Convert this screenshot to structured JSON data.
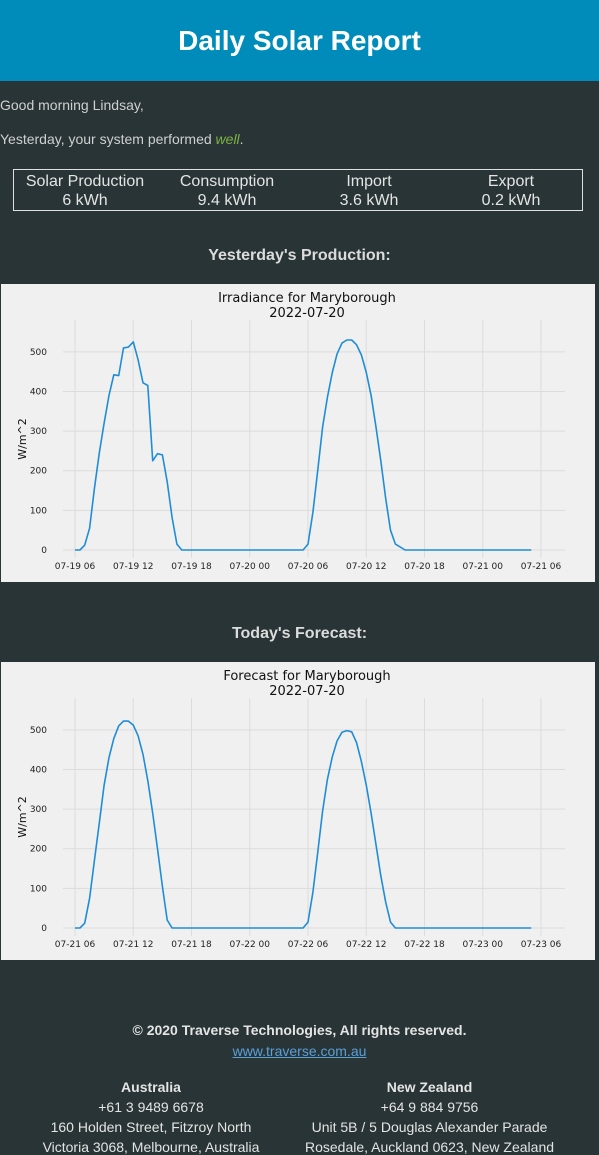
{
  "header": {
    "title": "Daily Solar Report"
  },
  "greeting": "Good morning Lindsay,",
  "performance": {
    "prefix": "Yesterday, your system performed ",
    "rating": "well",
    "suffix": "."
  },
  "stats": [
    {
      "label": "Solar Production",
      "value": "6 kWh"
    },
    {
      "label": "Consumption",
      "value": "9.4 kWh"
    },
    {
      "label": "Import",
      "value": "3.6 kWh"
    },
    {
      "label": "Export",
      "value": "0.2 kWh"
    }
  ],
  "production_section": {
    "title": "Yesterday's Production:"
  },
  "forecast_section": {
    "title": "Today's Forecast:"
  },
  "chart_data": [
    {
      "type": "line",
      "title": "Irradiance for Maryborough",
      "subtitle": "2022-07-20",
      "xlabel": "",
      "ylabel": "W/m^2",
      "ylim": [
        0,
        550
      ],
      "xlim": [
        0,
        48
      ],
      "grid": true,
      "x_tick_values": [
        0,
        6,
        12,
        18,
        24,
        30,
        36,
        42,
        48
      ],
      "x_tick_labels": [
        "07-19 06",
        "07-19 12",
        "07-19 18",
        "07-20 00",
        "07-20 06",
        "07-20 12",
        "07-20 18",
        "07-21 00",
        "07-21 06"
      ],
      "y_ticks": [
        0,
        100,
        200,
        300,
        400,
        500
      ],
      "series": [
        {
          "name": "Irradiance",
          "color": "#1f8dd6",
          "x": [
            0,
            0.5,
            1,
            1.5,
            2,
            2.5,
            3,
            3.5,
            4,
            4.5,
            5,
            5.5,
            6,
            6.5,
            7,
            7.5,
            8,
            8.5,
            9,
            9.5,
            10,
            10.5,
            11,
            11.5,
            12,
            13,
            14,
            15,
            16,
            17,
            18,
            19,
            20,
            21,
            22,
            23,
            23.5,
            24,
            24.5,
            25,
            25.5,
            26,
            26.5,
            27,
            27.5,
            28,
            28.5,
            29,
            29.5,
            30,
            30.5,
            31,
            31.5,
            32,
            32.5,
            33,
            34,
            35,
            36,
            37,
            38,
            39,
            40,
            41,
            42,
            43,
            47
          ],
          "values": [
            0,
            0,
            12,
            55,
            155,
            245,
            320,
            390,
            442,
            440,
            510,
            512,
            525,
            480,
            422,
            415,
            225,
            243,
            240,
            172,
            82,
            15,
            0,
            0,
            0,
            0,
            0,
            0,
            0,
            0,
            0,
            0,
            0,
            0,
            0,
            0,
            0,
            15,
            95,
            200,
            310,
            385,
            448,
            495,
            522,
            530,
            530,
            518,
            492,
            448,
            390,
            310,
            225,
            130,
            50,
            15,
            0,
            0,
            0,
            0,
            0,
            0,
            0,
            0,
            0,
            0,
            0
          ]
        }
      ]
    },
    {
      "type": "line",
      "title": "Forecast for Maryborough",
      "subtitle": "2022-07-20",
      "xlabel": "",
      "ylabel": "W/m^2",
      "ylim": [
        0,
        550
      ],
      "xlim": [
        0,
        48
      ],
      "grid": true,
      "x_tick_values": [
        0,
        6,
        12,
        18,
        24,
        30,
        36,
        42,
        48
      ],
      "x_tick_labels": [
        "07-21 06",
        "07-21 12",
        "07-21 18",
        "07-22 00",
        "07-22 06",
        "07-22 12",
        "07-22 18",
        "07-23 00",
        "07-23 06"
      ],
      "y_ticks": [
        0,
        100,
        200,
        300,
        400,
        500
      ],
      "series": [
        {
          "name": "Forecast",
          "color": "#1f8dd6",
          "x": [
            0,
            0.5,
            1,
            1.5,
            2,
            2.5,
            3,
            3.5,
            4,
            4.5,
            5,
            5.5,
            6,
            6.5,
            7,
            7.5,
            8,
            8.5,
            9,
            9.5,
            10,
            10.5,
            11,
            11.5,
            12,
            13,
            14,
            15,
            16,
            17,
            18,
            19,
            20,
            21,
            22,
            23,
            23.5,
            24,
            24.5,
            25,
            25.5,
            26,
            26.5,
            27,
            27.5,
            28,
            28.5,
            29,
            29.5,
            30,
            30.5,
            31,
            31.5,
            32,
            32.5,
            33,
            34,
            35,
            36,
            37,
            38,
            39,
            40,
            41,
            42,
            43,
            47
          ],
          "values": [
            0,
            0,
            12,
            75,
            170,
            265,
            360,
            430,
            478,
            510,
            522,
            522,
            512,
            485,
            438,
            372,
            290,
            200,
            105,
            20,
            0,
            0,
            0,
            0,
            0,
            0,
            0,
            0,
            0,
            0,
            0,
            0,
            0,
            0,
            0,
            0,
            0,
            15,
            90,
            190,
            295,
            375,
            432,
            472,
            494,
            498,
            495,
            468,
            420,
            360,
            290,
            210,
            132,
            65,
            15,
            0,
            0,
            0,
            0,
            0,
            0,
            0,
            0,
            0,
            0,
            0,
            0
          ]
        }
      ]
    }
  ],
  "footer": {
    "copyright": "© 2020 Traverse Technologies, All rights reserved.",
    "website": "www.traverse.com.au",
    "offices": [
      {
        "name": "Australia",
        "phone": "+61 3 9489 6678",
        "address1": "160 Holden Street, Fitzroy North",
        "address2": "Victoria 3068, Melbourne, Australia"
      },
      {
        "name": "New Zealand",
        "phone": "+64 9 884 9756",
        "address1": "Unit 5B / 5 Douglas Alexander Parade",
        "address2": "Rosedale, Auckland 0623, New Zealand"
      }
    ]
  }
}
